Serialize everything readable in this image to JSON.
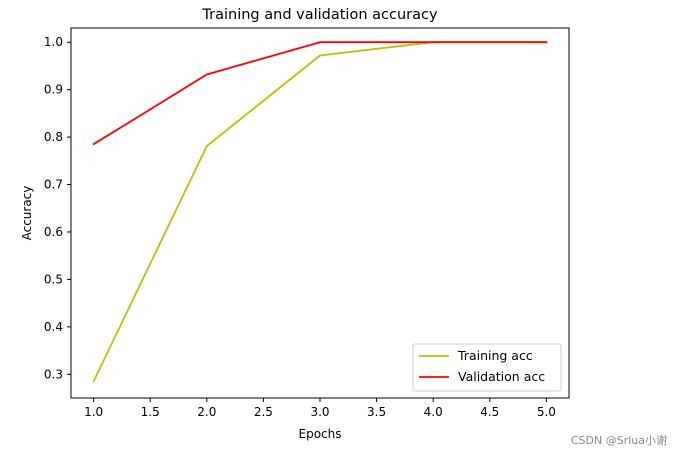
{
  "watermark": "CSDN @Srlua小谢",
  "chart_data": {
    "type": "line",
    "title": "Training and validation accuracy",
    "xlabel": "Epochs",
    "ylabel": "Accuracy",
    "xlim": [
      0.8,
      5.2
    ],
    "ylim": [
      0.25,
      1.03
    ],
    "xticks": [
      1.0,
      1.5,
      2.0,
      2.5,
      3.0,
      3.5,
      4.0,
      4.5,
      5.0
    ],
    "xtick_labels": [
      "1.0",
      "1.5",
      "2.0",
      "2.5",
      "3.0",
      "3.5",
      "4.0",
      "4.5",
      "5.0"
    ],
    "yticks": [
      0.3,
      0.4,
      0.5,
      0.6,
      0.7,
      0.8,
      0.9,
      1.0
    ],
    "ytick_labels": [
      "0.3",
      "0.4",
      "0.5",
      "0.6",
      "0.7",
      "0.8",
      "0.9",
      "1.0"
    ],
    "x": [
      1,
      2,
      3,
      4,
      5
    ],
    "series": [
      {
        "name": "Training acc",
        "color": "#bfbf00",
        "values": [
          0.285,
          0.781,
          0.972,
          1.0,
          1.0
        ]
      },
      {
        "name": "Validation acc",
        "color": "#ff0000",
        "values": [
          0.785,
          0.932,
          1.0,
          1.0,
          1.0
        ]
      }
    ],
    "grid": false,
    "legend_position": "lower right"
  }
}
